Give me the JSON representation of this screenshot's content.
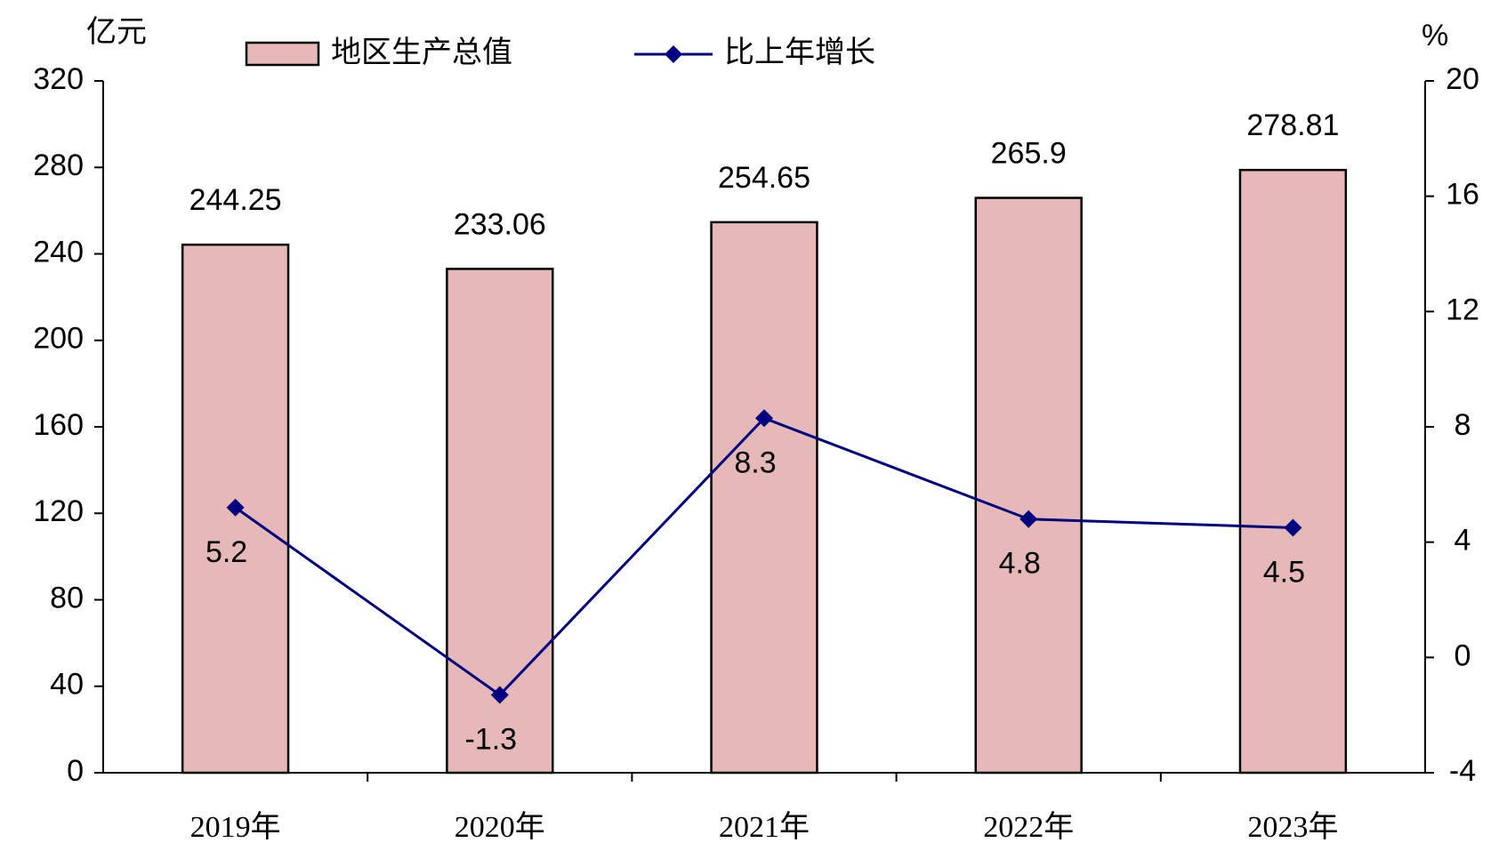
{
  "chart_data": {
    "type": "bar",
    "ylabel": "亿元",
    "y2label": "%",
    "categories": [
      "2019年",
      "2020年",
      "2021年",
      "2022年",
      "2023年"
    ],
    "series": [
      {
        "name": "地区生产总值",
        "type": "bar",
        "color": "#e6b8b7",
        "values": [
          244.25,
          233.06,
          254.65,
          265.9,
          278.81
        ]
      },
      {
        "name": "比上年增长",
        "type": "line",
        "axis": "y2",
        "color": "#000080",
        "values": [
          5.2,
          -1.3,
          8.3,
          4.8,
          4.5
        ]
      }
    ],
    "ylim": [
      0,
      320
    ],
    "yticks": [
      0,
      40,
      80,
      120,
      160,
      200,
      240,
      280,
      320
    ],
    "y2lim": [
      -4,
      20
    ],
    "y2ticks": [
      -4,
      0,
      4,
      8,
      12,
      16,
      20
    ],
    "legend": "top"
  }
}
